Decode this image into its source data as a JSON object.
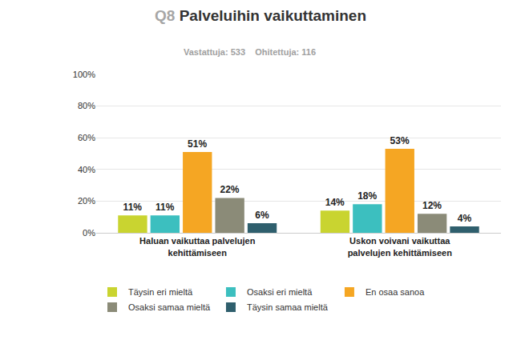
{
  "chart_data": {
    "type": "bar",
    "title": "Q8 Palveluihin vaikuttaminen",
    "subtitle": "Vastattuja: 533    Ohitettuja: 116",
    "categories": [
      "Haluan vaikuttaa palvelujen kehittämiseen",
      "Uskon voivani vaikuttaa palvelujen kehittämiseen"
    ],
    "series": [
      {
        "name": "Täysin eri mieltä",
        "color": "#c9d430",
        "values": [
          11,
          14
        ],
        "value_labels": [
          "11%",
          "14%"
        ]
      },
      {
        "name": "Osaksi eri mieltä",
        "color": "#3cbfbf",
        "values": [
          11,
          18
        ],
        "value_labels": [
          "11%",
          "18%"
        ]
      },
      {
        "name": "En osaa sanoa",
        "color": "#f5a623",
        "values": [
          51,
          53
        ],
        "value_labels": [
          "51%",
          "53%"
        ]
      },
      {
        "name": "Osaksi samaa mieltä",
        "color": "#8b8b78",
        "values": [
          22,
          12
        ],
        "value_labels": [
          "22%",
          "12%"
        ]
      },
      {
        "name": "Täysin samaa mieltä",
        "color": "#2f5f6d",
        "values": [
          6,
          4
        ],
        "value_labels": [
          "6%",
          "4%"
        ]
      }
    ],
    "ylim": [
      0,
      100
    ],
    "yticks": [
      {
        "value": 0,
        "label": "0%"
      },
      {
        "value": 20,
        "label": "20%"
      },
      {
        "value": 40,
        "label": "40%"
      },
      {
        "value": 60,
        "label": "60%"
      },
      {
        "value": 80,
        "label": "80%"
      },
      {
        "value": 100,
        "label": "100%"
      }
    ],
    "grid": true,
    "legend": "bottom",
    "data_labels": true
  }
}
